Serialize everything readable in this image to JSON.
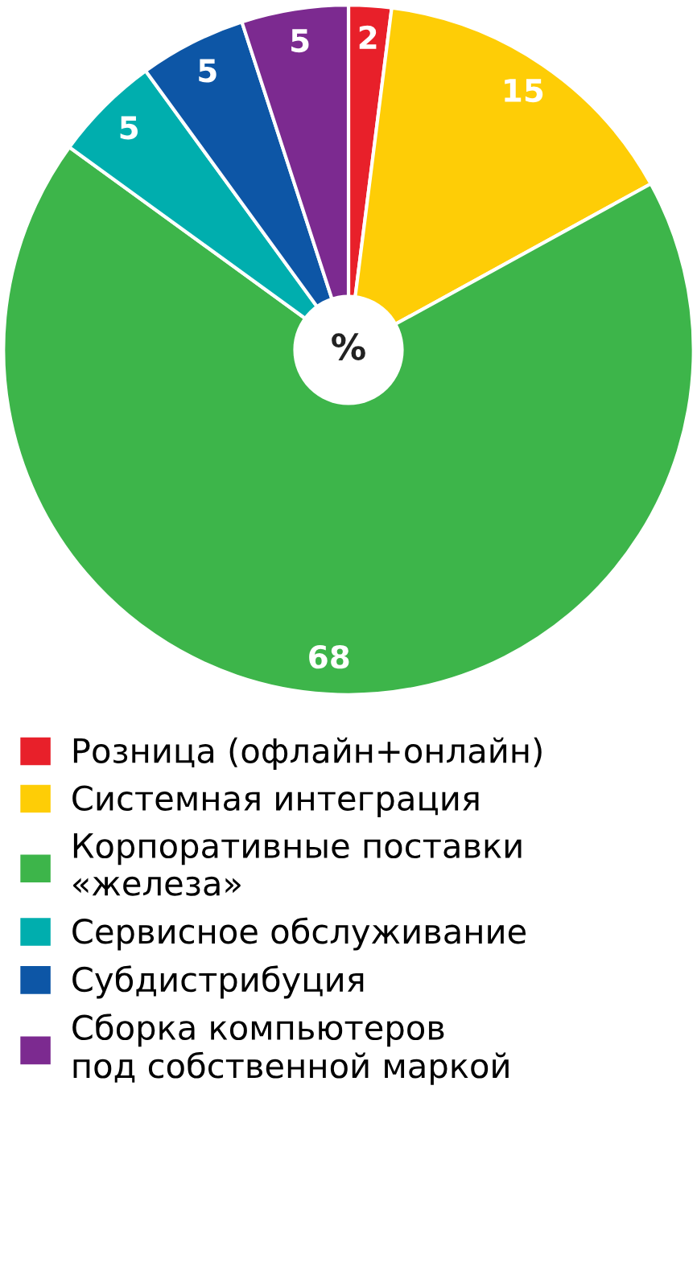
{
  "chart_data": {
    "type": "pie",
    "categories": [
      "Розница (офлайн+онлайн)",
      "Системная интеграция",
      "Корпоративные поставки\n«железа»",
      "Сервисное обслуживание",
      "Субдистрибуция",
      "Сборка компьютеров\nпод собственной маркой"
    ],
    "values": [
      2,
      15,
      68,
      5,
      5,
      5
    ],
    "colors": [
      "#e8202a",
      "#fecd06",
      "#3db54a",
      "#00aeae",
      "#0d56a6",
      "#7c2a90"
    ],
    "data_labels": true,
    "annotations": [
      "%"
    ],
    "legend": "bottom"
  }
}
